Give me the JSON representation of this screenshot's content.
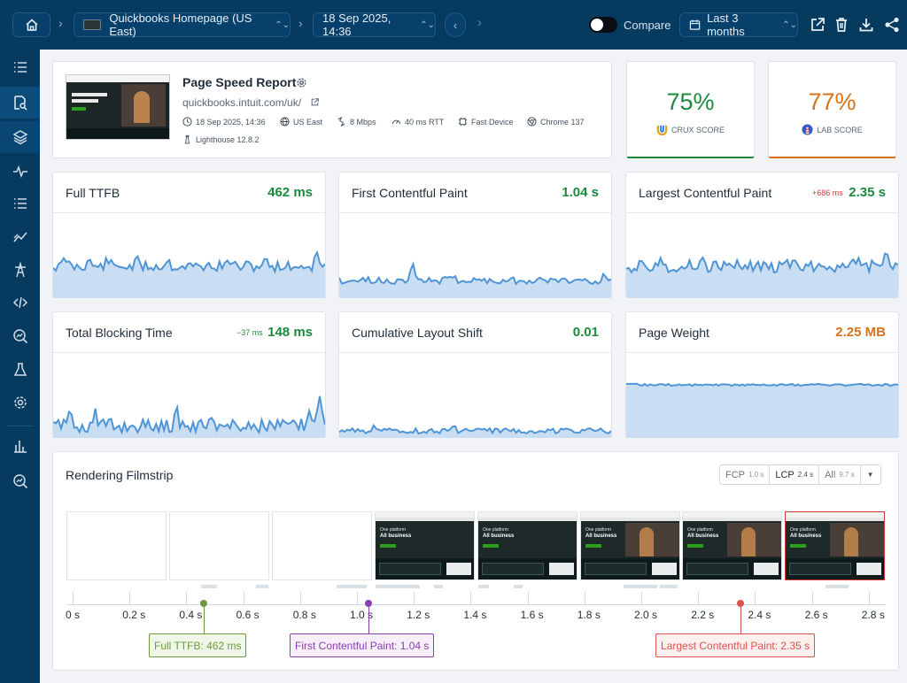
{
  "topbar": {
    "test_name": "Quickbooks Homepage (US East)",
    "date": "18 Sep 2025, 14:36",
    "compare_label": "Compare",
    "range_label": "Last 3 months"
  },
  "colors": {
    "navy": "#063a5f",
    "green": "#1c8a3e",
    "orange": "#d4731c",
    "red": "#d23b3b",
    "spark": "#4f95d6",
    "spark_fill": "#c9def3"
  },
  "report": {
    "title": "Page Speed Report",
    "url": "quickbooks.intuit.com/uk/",
    "meta": [
      "18 Sep 2025, 14:36",
      "US East",
      "8 Mbps",
      "40 ms RTT",
      "Fast Device",
      "Chrome 137"
    ],
    "lighthouse": "Lighthouse 12.8.2"
  },
  "scores": {
    "crux": {
      "value": "75%",
      "label": "CRUX SCORE"
    },
    "lab": {
      "value": "77%",
      "label": "LAB SCORE"
    }
  },
  "metrics": [
    {
      "title": "Full TTFB",
      "value": "462 ms",
      "delta": ""
    },
    {
      "title": "First Contentful Paint",
      "value": "1.04 s",
      "delta": ""
    },
    {
      "title": "Largest Contentful Paint",
      "value": "2.35 s",
      "delta": "+686 ms"
    },
    {
      "title": "Total Blocking Time",
      "value": "148 ms",
      "delta": "−37 ms"
    },
    {
      "title": "Cumulative Layout Shift",
      "value": "0.01",
      "delta": ""
    },
    {
      "title": "Page Weight",
      "value": "2.25 MB",
      "delta": ""
    }
  ],
  "filmstrip": {
    "title": "Rendering Filmstrip",
    "buttons": [
      {
        "label": "FCP",
        "time": "1.0 s"
      },
      {
        "label": "LCP",
        "time": "2.4 s"
      },
      {
        "label": "All",
        "time": "9.7 s"
      }
    ],
    "shot_text": {
      "line1": "One platform",
      "line2": "All business"
    },
    "ticks": [
      "0 s",
      "0.2 s",
      "0.4 s",
      "0.6 s",
      "0.8 s",
      "1.0 s",
      "1.2 s",
      "1.4 s",
      "1.6 s",
      "1.8 s",
      "2.0 s",
      "2.2 s",
      "2.4 s",
      "2.6 s",
      "2.8 s"
    ],
    "markers": [
      {
        "label": "Full TTFB: 462 ms",
        "time": 0.462
      },
      {
        "label": "First Contentful Paint: 1.04 s",
        "time": 1.04
      },
      {
        "label": "Largest Contentful Paint: 2.35 s",
        "time": 2.35
      }
    ]
  }
}
